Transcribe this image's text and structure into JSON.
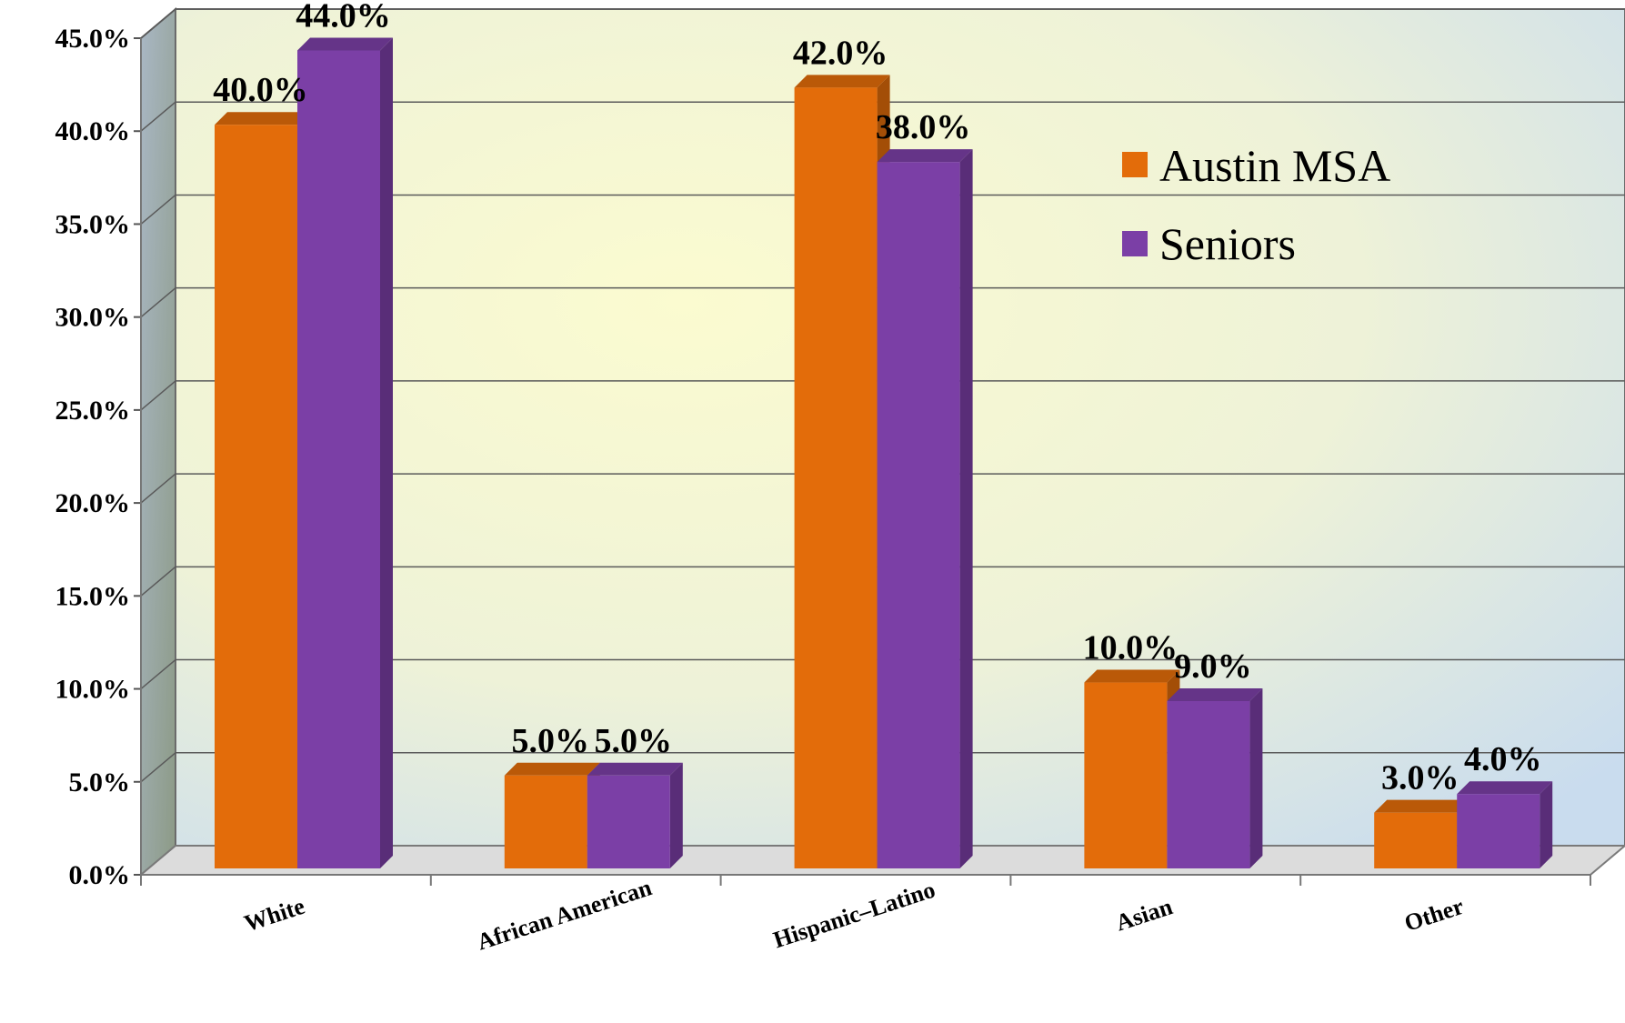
{
  "chart_data": {
    "type": "bar",
    "categories": [
      "White",
      "African American",
      "Hispanic–Latino",
      "Asian",
      "Other"
    ],
    "series": [
      {
        "name": "Austin MSA",
        "color": "#E36C0A",
        "values": [
          40.0,
          5.0,
          42.0,
          10.0,
          3.0
        ]
      },
      {
        "name": "Seniors",
        "color": "#7B3FA6",
        "values": [
          44.0,
          5.0,
          38.0,
          9.0,
          4.0
        ]
      }
    ],
    "y_ticks": [
      "0.0%",
      "5.0%",
      "10.0%",
      "15.0%",
      "20.0%",
      "25.0%",
      "30.0%",
      "35.0%",
      "40.0%",
      "45.0%"
    ],
    "ylim": [
      0,
      45
    ],
    "grid": true,
    "three_d": true,
    "legend_position": "top-right",
    "data_labels": true
  }
}
